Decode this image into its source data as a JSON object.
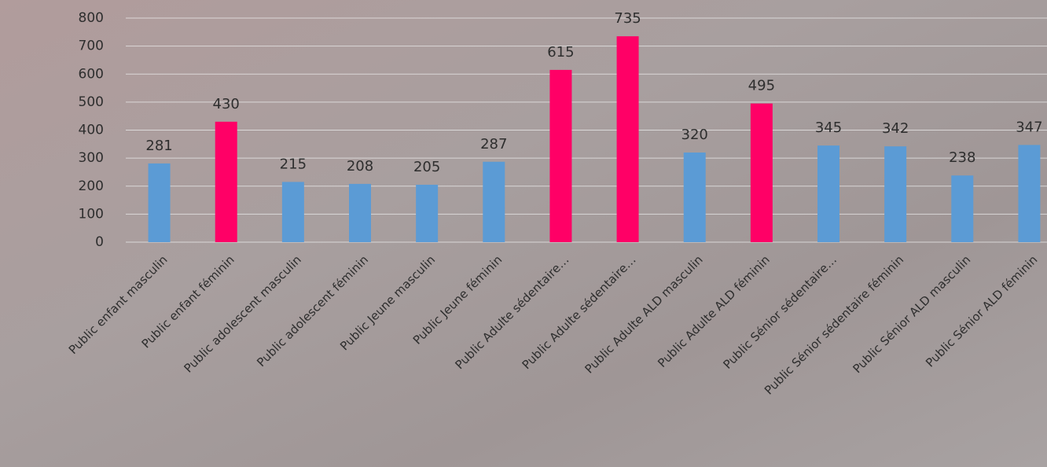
{
  "chart_data": {
    "type": "bar",
    "categories": [
      "Public enfant masculin",
      "Public enfant féminin",
      "Public adolescent masculin",
      "Public adolescent féminin",
      "Public Jeune masculin",
      "Public Jeune féminin",
      "Public Adulte sédentaire…",
      "Public Adulte sédentaire…",
      "Public Adulte ALD masculin",
      "Public Adulte ALD féminin",
      "Public Sénior sédentaire…",
      "Public Sénior sédentaire féminin",
      "Public Sénior ALD masculin",
      "Public Sénior ALD féminin"
    ],
    "values": [
      281,
      430,
      215,
      208,
      205,
      287,
      615,
      735,
      320,
      495,
      345,
      342,
      238,
      347
    ],
    "colors": [
      "#5b9bd5",
      "#ff0066",
      "#5b9bd5",
      "#5b9bd5",
      "#5b9bd5",
      "#5b9bd5",
      "#ff0066",
      "#ff0066",
      "#5b9bd5",
      "#ff0066",
      "#5b9bd5",
      "#5b9bd5",
      "#5b9bd5",
      "#5b9bd5"
    ],
    "ylim": [
      0,
      800
    ],
    "yticks": [
      0,
      100,
      200,
      300,
      400,
      500,
      600,
      700,
      800
    ],
    "grid": true
  }
}
